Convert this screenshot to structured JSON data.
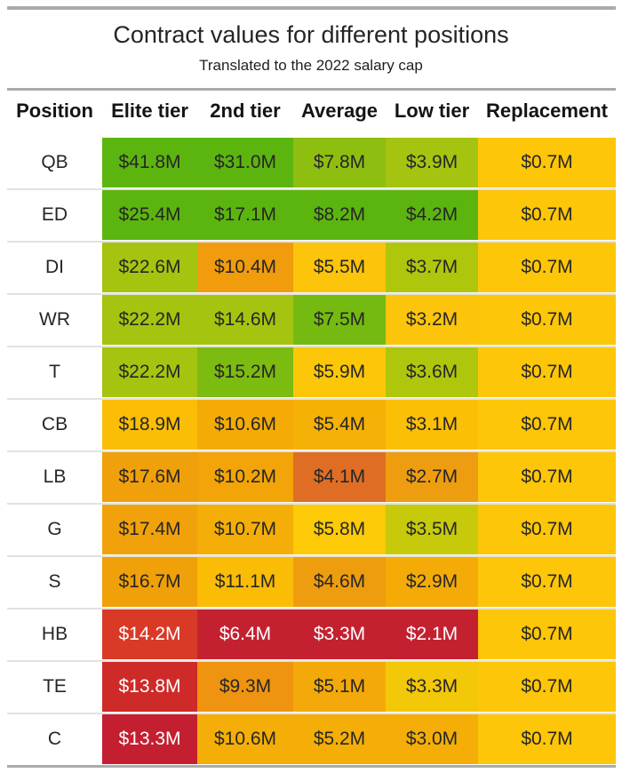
{
  "title": "Contract values for different positions",
  "subtitle": "Translated to the 2022 salary cap",
  "chart_data": {
    "type": "heatmap",
    "title": "Contract values for different positions",
    "subtitle": "Translated to the 2022 salary cap",
    "unit": "$M (2022 salary cap)",
    "columns": [
      "Position",
      "Elite tier",
      "2nd tier",
      "Average",
      "Low tier",
      "Replacement"
    ],
    "rows": [
      {
        "position": "QB",
        "values": [
          41.8,
          31.0,
          7.8,
          3.9,
          0.7
        ],
        "cells": [
          {
            "label": "$41.8M",
            "bg": "#5cb50f"
          },
          {
            "label": "$31.0M",
            "bg": "#5cb50f"
          },
          {
            "label": "$7.8M",
            "bg": "#8ebe10"
          },
          {
            "label": "$3.9M",
            "bg": "#a5c40f"
          },
          {
            "label": "$0.7M",
            "bg": "#fdc608"
          }
        ]
      },
      {
        "position": "ED",
        "values": [
          25.4,
          17.1,
          8.2,
          4.2,
          0.7
        ],
        "cells": [
          {
            "label": "$25.4M",
            "bg": "#5cb50f"
          },
          {
            "label": "$17.1M",
            "bg": "#5cb50f"
          },
          {
            "label": "$8.2M",
            "bg": "#5cb50f"
          },
          {
            "label": "$4.2M",
            "bg": "#5cb50f"
          },
          {
            "label": "$0.7M",
            "bg": "#fdc608"
          }
        ]
      },
      {
        "position": "DI",
        "values": [
          22.6,
          10.4,
          5.5,
          3.7,
          0.7
        ],
        "cells": [
          {
            "label": "$22.6M",
            "bg": "#a5c40f"
          },
          {
            "label": "$10.4M",
            "bg": "#f09c0c"
          },
          {
            "label": "$5.5M",
            "bg": "#fcc40a"
          },
          {
            "label": "$3.7M",
            "bg": "#aec70d"
          },
          {
            "label": "$0.7M",
            "bg": "#fdc608"
          }
        ]
      },
      {
        "position": "WR",
        "values": [
          22.2,
          14.6,
          7.5,
          3.2,
          0.7
        ],
        "cells": [
          {
            "label": "$22.2M",
            "bg": "#a5c40f"
          },
          {
            "label": "$14.6M",
            "bg": "#a5c40f"
          },
          {
            "label": "$7.5M",
            "bg": "#74ba11"
          },
          {
            "label": "$3.2M",
            "bg": "#fcc40a"
          },
          {
            "label": "$0.7M",
            "bg": "#fdc608"
          }
        ]
      },
      {
        "position": "T",
        "values": [
          22.2,
          15.2,
          5.9,
          3.6,
          0.7
        ],
        "cells": [
          {
            "label": "$22.2M",
            "bg": "#a5c40f"
          },
          {
            "label": "$15.2M",
            "bg": "#7cbb10"
          },
          {
            "label": "$5.9M",
            "bg": "#fcc708"
          },
          {
            "label": "$3.6M",
            "bg": "#aec70d"
          },
          {
            "label": "$0.7M",
            "bg": "#fdc608"
          }
        ]
      },
      {
        "position": "CB",
        "values": [
          18.9,
          10.6,
          5.4,
          3.1,
          0.7
        ],
        "cells": [
          {
            "label": "$18.9M",
            "bg": "#fbbd06"
          },
          {
            "label": "$10.6M",
            "bg": "#f4ab06"
          },
          {
            "label": "$5.4M",
            "bg": "#f6b106"
          },
          {
            "label": "$3.1M",
            "bg": "#fbbf06"
          },
          {
            "label": "$0.7M",
            "bg": "#fdc608"
          }
        ]
      },
      {
        "position": "LB",
        "values": [
          17.6,
          10.2,
          4.1,
          2.7,
          0.7
        ],
        "cells": [
          {
            "label": "$17.6M",
            "bg": "#f0a00a"
          },
          {
            "label": "$10.2M",
            "bg": "#f2a408"
          },
          {
            "label": "$4.1M",
            "bg": "#df6e24"
          },
          {
            "label": "$2.7M",
            "bg": "#ef9d10"
          },
          {
            "label": "$0.7M",
            "bg": "#fdc608"
          }
        ]
      },
      {
        "position": "G",
        "values": [
          17.4,
          10.7,
          5.8,
          3.5,
          0.7
        ],
        "cells": [
          {
            "label": "$17.4M",
            "bg": "#f1a20a"
          },
          {
            "label": "$10.7M",
            "bg": "#f5ae08"
          },
          {
            "label": "$5.8M",
            "bg": "#fcca06"
          },
          {
            "label": "$3.5M",
            "bg": "#c6ca0b"
          },
          {
            "label": "$0.7M",
            "bg": "#fdc608"
          }
        ]
      },
      {
        "position": "S",
        "values": [
          16.7,
          11.1,
          4.6,
          2.9,
          0.7
        ],
        "cells": [
          {
            "label": "$16.7M",
            "bg": "#f0a008"
          },
          {
            "label": "$11.1M",
            "bg": "#fbbc06"
          },
          {
            "label": "$4.6M",
            "bg": "#ee9d0e"
          },
          {
            "label": "$2.9M",
            "bg": "#f4ab07"
          },
          {
            "label": "$0.7M",
            "bg": "#fdc608"
          }
        ]
      },
      {
        "position": "HB",
        "values": [
          14.2,
          6.4,
          3.3,
          2.1,
          0.7
        ],
        "cells": [
          {
            "label": "$14.2M",
            "bg": "#d93a28",
            "fg": "#ffffff"
          },
          {
            "label": "$6.4M",
            "bg": "#c42130",
            "fg": "#ffffff"
          },
          {
            "label": "$3.3M",
            "bg": "#c42130",
            "fg": "#ffffff"
          },
          {
            "label": "$2.1M",
            "bg": "#c42130",
            "fg": "#ffffff"
          },
          {
            "label": "$0.7M",
            "bg": "#fdc608"
          }
        ]
      },
      {
        "position": "TE",
        "values": [
          13.8,
          9.3,
          5.1,
          3.3,
          0.7
        ],
        "cells": [
          {
            "label": "$13.8M",
            "bg": "#ce2b28",
            "fg": "#ffffff"
          },
          {
            "label": "$9.3M",
            "bg": "#ee9410"
          },
          {
            "label": "$5.1M",
            "bg": "#f4a90a"
          },
          {
            "label": "$3.3M",
            "bg": "#f2c808"
          },
          {
            "label": "$0.7M",
            "bg": "#fdc608"
          }
        ]
      },
      {
        "position": "C",
        "values": [
          13.3,
          10.6,
          5.2,
          3.0,
          0.7
        ],
        "cells": [
          {
            "label": "$13.3M",
            "bg": "#c41f31",
            "fg": "#ffffff"
          },
          {
            "label": "$10.6M",
            "bg": "#f5ae08"
          },
          {
            "label": "$5.2M",
            "bg": "#f5ae08"
          },
          {
            "label": "$3.0M",
            "bg": "#f5ae08"
          },
          {
            "label": "$0.7M",
            "bg": "#fdc608"
          }
        ]
      }
    ],
    "layout": {
      "legend": "none",
      "grid": "off",
      "color_scale": "green (high value) to yellow to red (low value)"
    }
  }
}
